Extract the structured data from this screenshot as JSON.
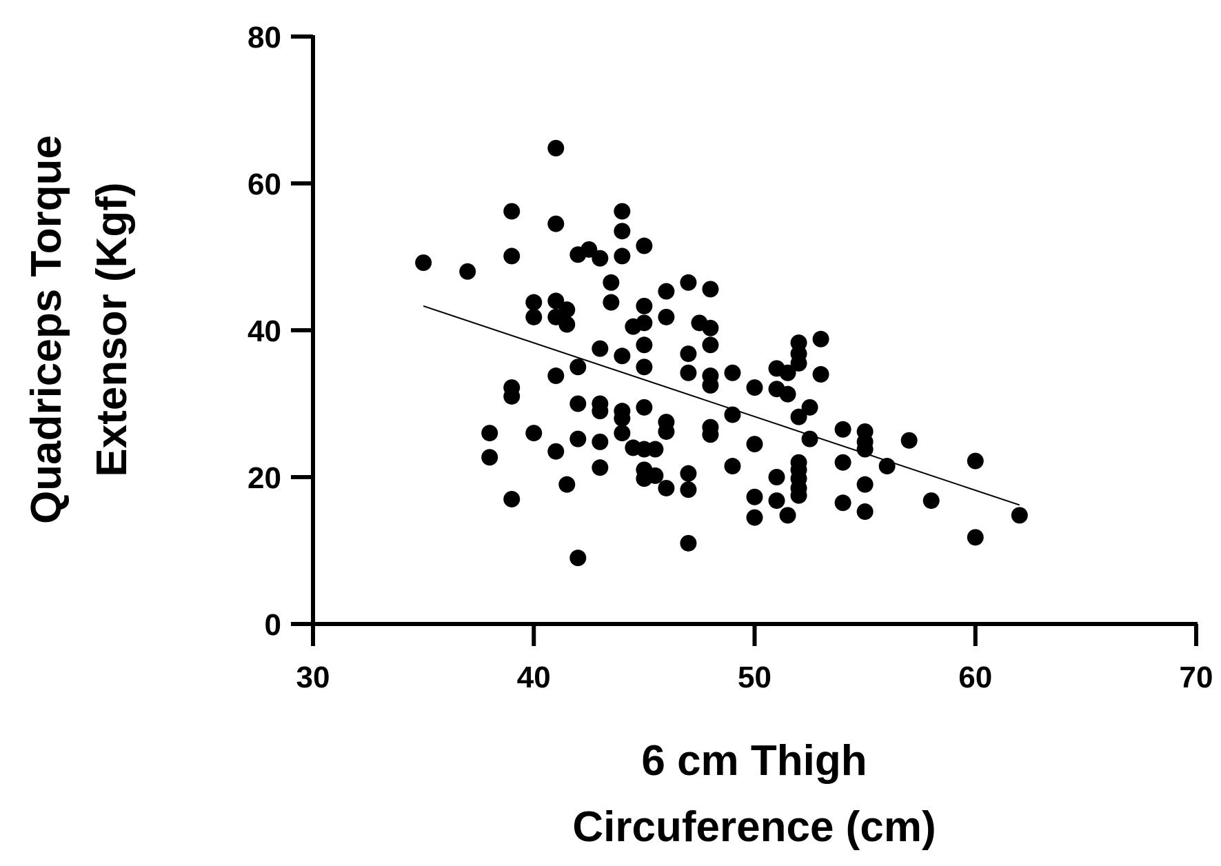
{
  "chart_data": {
    "type": "scatter",
    "xlabel": [
      "6 cm Thigh",
      "Circuference (cm)"
    ],
    "ylabel": [
      "Quadriceps Torque",
      "Extensor (Kgf)"
    ],
    "xlim": [
      30,
      70
    ],
    "ylim": [
      0,
      80
    ],
    "xticks": [
      "30",
      "40",
      "50",
      "60",
      "70"
    ],
    "yticks": [
      "0",
      "20",
      "40",
      "60",
      "80"
    ],
    "marker_color": "#000000",
    "grid": false,
    "points": [
      {
        "x": 35,
        "y": 49.2
      },
      {
        "x": 37,
        "y": 48
      },
      {
        "x": 38,
        "y": 26
      },
      {
        "x": 38,
        "y": 22.7
      },
      {
        "x": 39,
        "y": 56.2
      },
      {
        "x": 39,
        "y": 50.1
      },
      {
        "x": 39,
        "y": 32.2
      },
      {
        "x": 39,
        "y": 31
      },
      {
        "x": 39,
        "y": 17
      },
      {
        "x": 40,
        "y": 43.8
      },
      {
        "x": 40,
        "y": 41.8
      },
      {
        "x": 40,
        "y": 26
      },
      {
        "x": 41,
        "y": 64.8
      },
      {
        "x": 41,
        "y": 54.5
      },
      {
        "x": 41,
        "y": 44
      },
      {
        "x": 41,
        "y": 41.8
      },
      {
        "x": 41,
        "y": 33.8
      },
      {
        "x": 41,
        "y": 23.5
      },
      {
        "x": 41.5,
        "y": 42.8
      },
      {
        "x": 41.5,
        "y": 40.8
      },
      {
        "x": 41.5,
        "y": 19
      },
      {
        "x": 42,
        "y": 50.3
      },
      {
        "x": 42,
        "y": 35
      },
      {
        "x": 42,
        "y": 30
      },
      {
        "x": 42,
        "y": 25.2
      },
      {
        "x": 42,
        "y": 9
      },
      {
        "x": 42.5,
        "y": 51
      },
      {
        "x": 43,
        "y": 49.8
      },
      {
        "x": 43,
        "y": 37.5
      },
      {
        "x": 43,
        "y": 30
      },
      {
        "x": 43,
        "y": 29
      },
      {
        "x": 43,
        "y": 24.8
      },
      {
        "x": 43,
        "y": 21.3
      },
      {
        "x": 43.5,
        "y": 46.5
      },
      {
        "x": 43.5,
        "y": 43.8
      },
      {
        "x": 44,
        "y": 56.2
      },
      {
        "x": 44,
        "y": 53.5
      },
      {
        "x": 44,
        "y": 50.1
      },
      {
        "x": 44,
        "y": 36.5
      },
      {
        "x": 44,
        "y": 29
      },
      {
        "x": 44,
        "y": 28
      },
      {
        "x": 44,
        "y": 26
      },
      {
        "x": 44.5,
        "y": 40.5
      },
      {
        "x": 44.5,
        "y": 24
      },
      {
        "x": 45,
        "y": 51.5
      },
      {
        "x": 45,
        "y": 43.3
      },
      {
        "x": 45,
        "y": 41
      },
      {
        "x": 45,
        "y": 38
      },
      {
        "x": 45,
        "y": 35
      },
      {
        "x": 45,
        "y": 29.5
      },
      {
        "x": 45,
        "y": 23.8
      },
      {
        "x": 45,
        "y": 21
      },
      {
        "x": 45,
        "y": 19.8
      },
      {
        "x": 45.5,
        "y": 23.8
      },
      {
        "x": 45.5,
        "y": 20.2
      },
      {
        "x": 46,
        "y": 45.3
      },
      {
        "x": 46,
        "y": 41.8
      },
      {
        "x": 46,
        "y": 27.5
      },
      {
        "x": 46,
        "y": 26.2
      },
      {
        "x": 46,
        "y": 18.5
      },
      {
        "x": 47,
        "y": 46.5
      },
      {
        "x": 47,
        "y": 36.8
      },
      {
        "x": 47,
        "y": 34.2
      },
      {
        "x": 47,
        "y": 20.5
      },
      {
        "x": 47,
        "y": 18.3
      },
      {
        "x": 47,
        "y": 11
      },
      {
        "x": 47.5,
        "y": 41
      },
      {
        "x": 48,
        "y": 45.6
      },
      {
        "x": 48,
        "y": 40.3
      },
      {
        "x": 48,
        "y": 38
      },
      {
        "x": 48,
        "y": 33.8
      },
      {
        "x": 48,
        "y": 32.5
      },
      {
        "x": 48,
        "y": 26.8
      },
      {
        "x": 48,
        "y": 25.8
      },
      {
        "x": 49,
        "y": 34.2
      },
      {
        "x": 49,
        "y": 28.5
      },
      {
        "x": 49,
        "y": 21.5
      },
      {
        "x": 50,
        "y": 32.2
      },
      {
        "x": 50,
        "y": 24.5
      },
      {
        "x": 50,
        "y": 17.3
      },
      {
        "x": 50,
        "y": 14.5
      },
      {
        "x": 51,
        "y": 34.8
      },
      {
        "x": 51,
        "y": 32
      },
      {
        "x": 51,
        "y": 20
      },
      {
        "x": 51,
        "y": 16.8
      },
      {
        "x": 51.5,
        "y": 34.2
      },
      {
        "x": 51.5,
        "y": 31.3
      },
      {
        "x": 51.5,
        "y": 14.8
      },
      {
        "x": 52,
        "y": 38.3
      },
      {
        "x": 52,
        "y": 36.8
      },
      {
        "x": 52,
        "y": 35.5
      },
      {
        "x": 52,
        "y": 28.2
      },
      {
        "x": 52,
        "y": 22
      },
      {
        "x": 52,
        "y": 21
      },
      {
        "x": 52,
        "y": 19.8
      },
      {
        "x": 52,
        "y": 18.5
      },
      {
        "x": 52,
        "y": 17.5
      },
      {
        "x": 52.5,
        "y": 29.5
      },
      {
        "x": 52.5,
        "y": 25.2
      },
      {
        "x": 53,
        "y": 38.8
      },
      {
        "x": 53,
        "y": 34
      },
      {
        "x": 54,
        "y": 26.5
      },
      {
        "x": 54,
        "y": 22
      },
      {
        "x": 54,
        "y": 16.5
      },
      {
        "x": 55,
        "y": 26.2
      },
      {
        "x": 55,
        "y": 24.8
      },
      {
        "x": 55,
        "y": 23.8
      },
      {
        "x": 55,
        "y": 19
      },
      {
        "x": 55,
        "y": 15.3
      },
      {
        "x": 56,
        "y": 21.5
      },
      {
        "x": 57,
        "y": 25
      },
      {
        "x": 58,
        "y": 16.8
      },
      {
        "x": 60,
        "y": 22.2
      },
      {
        "x": 60,
        "y": 11.8
      },
      {
        "x": 62,
        "y": 14.8
      }
    ],
    "trendline": {
      "x": [
        35,
        62
      ],
      "y": [
        43.3,
        16.2
      ]
    }
  }
}
